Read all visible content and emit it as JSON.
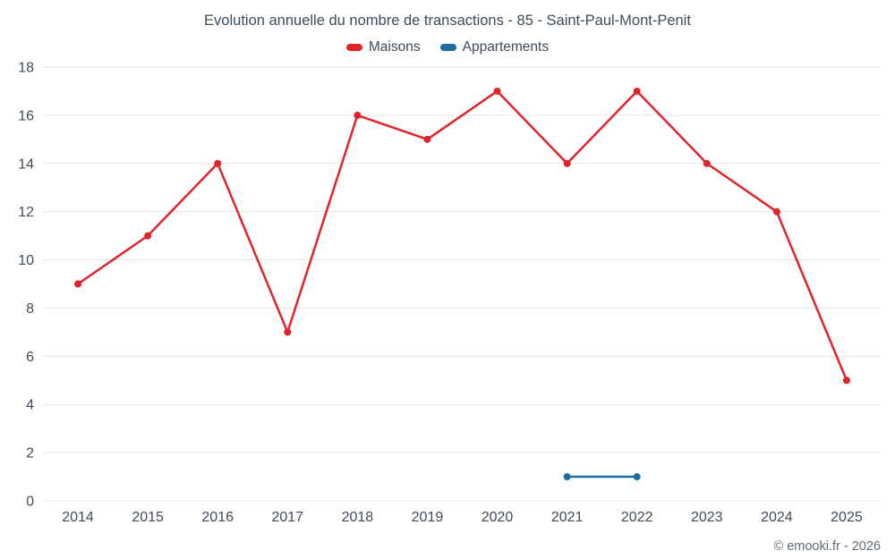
{
  "chart_data": {
    "type": "line",
    "title": "Evolution annuelle du nombre de transactions - 85 - Saint-Paul-Mont-Penit",
    "categories": [
      "2014",
      "2015",
      "2016",
      "2017",
      "2018",
      "2019",
      "2020",
      "2021",
      "2022",
      "2023",
      "2024",
      "2025"
    ],
    "series": [
      {
        "name": "Maisons",
        "color": "#e0242b",
        "values": [
          9,
          11,
          14,
          7,
          16,
          15,
          17,
          14,
          17,
          14,
          12,
          5
        ]
      },
      {
        "name": "Appartements",
        "color": "#1a6d9e",
        "values": [
          null,
          null,
          null,
          null,
          null,
          null,
          null,
          1,
          1,
          null,
          null,
          null
        ]
      }
    ],
    "ylim": [
      0,
      18
    ],
    "yticks": [
      0,
      2,
      4,
      6,
      8,
      10,
      12,
      14,
      16,
      18
    ],
    "grid": true,
    "grid_color": "#e6e6e6",
    "legend_position": "top"
  },
  "footer": {
    "credit": "© emooki.fr - 2026"
  }
}
